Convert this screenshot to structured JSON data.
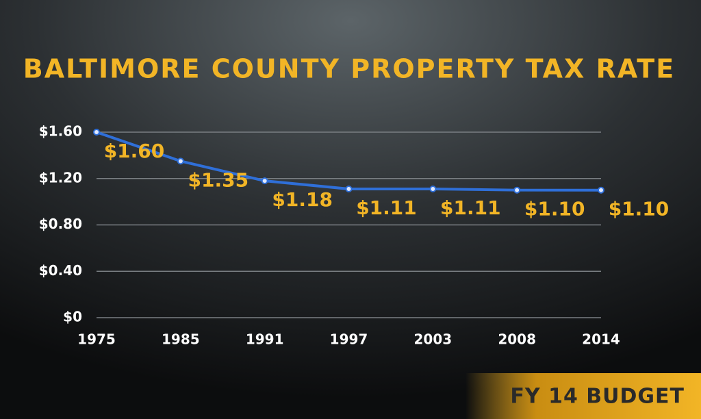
{
  "chart_data": {
    "type": "line",
    "title": "BALTIMORE COUNTY PROPERTY TAX RATE",
    "categories": [
      "1975",
      "1985",
      "1991",
      "1997",
      "2003",
      "2008",
      "2014"
    ],
    "series": [
      {
        "color": "#2f6fd8",
        "values": [
          1.6,
          1.35,
          1.18,
          1.11,
          1.11,
          1.1,
          1.1
        ],
        "value_labels": [
          "$1.60",
          "$1.35",
          "$1.18",
          "$1.11",
          "$1.11",
          "$1.10",
          "$1.10"
        ]
      }
    ],
    "ylim": [
      0,
      1.6
    ],
    "yticks": [
      {
        "value": 0,
        "label": "$0"
      },
      {
        "value": 0.4,
        "label": "$0.40"
      },
      {
        "value": 0.8,
        "label": "$0.80"
      },
      {
        "value": 1.2,
        "label": "$1.20"
      },
      {
        "value": 1.6,
        "label": "$1.60"
      }
    ],
    "grid": true,
    "badge": "FY 14 BUDGET"
  }
}
